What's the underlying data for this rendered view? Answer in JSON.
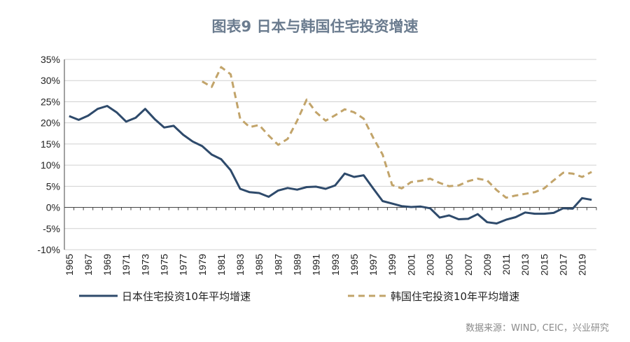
{
  "chart_data": {
    "type": "line",
    "title": "图表9  日本与韩国住宅投资增速",
    "xlabel": "",
    "ylabel": "",
    "ylim": [
      -10,
      35
    ],
    "yticks": [
      "35%",
      "30%",
      "25%",
      "20%",
      "15%",
      "10%",
      "5%",
      "0%",
      "-5%",
      "-10%"
    ],
    "xlim": [
      1965,
      2020
    ],
    "xticks": [
      "1965",
      "1967",
      "1969",
      "1971",
      "1973",
      "1975",
      "1977",
      "1979",
      "1981",
      "1983",
      "1985",
      "1987",
      "1989",
      "1991",
      "1993",
      "1995",
      "1997",
      "1999",
      "2001",
      "2003",
      "2005",
      "2007",
      "2009",
      "2011",
      "2013",
      "2015",
      "2017",
      "2019"
    ],
    "grid": true,
    "legend": "bottom",
    "series": [
      {
        "name": "日本住宅投资10年平均增速",
        "color": "#2e4a6b",
        "style": "solid",
        "x": [
          1965,
          1966,
          1967,
          1968,
          1969,
          1970,
          1971,
          1972,
          1973,
          1974,
          1975,
          1976,
          1977,
          1978,
          1979,
          1980,
          1981,
          1982,
          1983,
          1984,
          1985,
          1986,
          1987,
          1988,
          1989,
          1990,
          1991,
          1992,
          1993,
          1994,
          1995,
          1996,
          1997,
          1998,
          1999,
          2000,
          2001,
          2002,
          2003,
          2004,
          2005,
          2006,
          2007,
          2008,
          2009,
          2010,
          2011,
          2012,
          2013,
          2014,
          2015,
          2016,
          2017,
          2018,
          2019,
          2020
        ],
        "values": [
          21.6,
          20.7,
          21.7,
          23.3,
          24.0,
          22.5,
          20.3,
          21.2,
          23.3,
          20.9,
          18.9,
          19.3,
          17.2,
          15.6,
          14.5,
          12.5,
          11.4,
          8.8,
          4.4,
          3.6,
          3.4,
          2.5,
          4.0,
          4.6,
          4.2,
          4.8,
          4.9,
          4.4,
          5.2,
          8.0,
          7.2,
          7.6,
          4.5,
          1.5,
          0.9,
          0.3,
          0.1,
          0.2,
          -0.2,
          -2.4,
          -1.9,
          -2.8,
          -2.7,
          -1.6,
          -3.5,
          -3.8,
          -2.9,
          -2.3,
          -1.2,
          -1.5,
          -1.5,
          -1.3,
          -0.2,
          -0.3,
          2.2,
          1.8
        ]
      },
      {
        "name": "韩国住宅投资10年平均增速",
        "color": "#c2a46a",
        "style": "dashed",
        "x": [
          1979,
          1980,
          1981,
          1982,
          1983,
          1984,
          1985,
          1986,
          1987,
          1988,
          1989,
          1990,
          1991,
          1992,
          1993,
          1994,
          1995,
          1996,
          1997,
          1998,
          1999,
          2000,
          2001,
          2002,
          2003,
          2004,
          2005,
          2006,
          2007,
          2008,
          2009,
          2010,
          2011,
          2012,
          2013,
          2014,
          2015,
          2016,
          2017,
          2018,
          2019,
          2020
        ],
        "values": [
          29.8,
          28.5,
          33.2,
          31.5,
          21.0,
          19.0,
          19.5,
          17.0,
          14.8,
          16.2,
          20.5,
          25.5,
          22.5,
          20.5,
          21.8,
          23.2,
          22.5,
          21.0,
          16.5,
          12.5,
          5.3,
          4.5,
          6.0,
          6.3,
          6.8,
          5.8,
          5.0,
          5.2,
          6.2,
          6.8,
          6.4,
          4.1,
          2.3,
          2.8,
          3.2,
          3.6,
          4.5,
          6.4,
          8.2,
          8.0,
          7.2,
          8.4
        ]
      }
    ]
  },
  "source_text": "数据来源：WIND, CEIC，兴业研究"
}
